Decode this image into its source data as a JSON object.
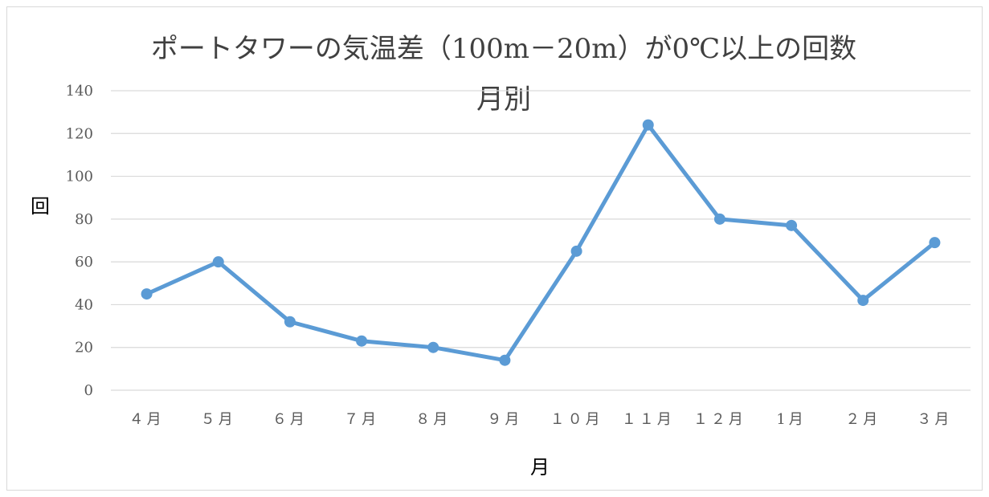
{
  "chart_data": {
    "type": "line",
    "title": "ポートタワーの気温差（100m－20m）が0℃以上の回数",
    "subtitle": "月別",
    "xlabel": "月",
    "ylabel": "回",
    "categories": [
      "４月",
      "５月",
      "６月",
      "７月",
      "８月",
      "９月",
      "１０月",
      "１１月",
      "１２月",
      "1月",
      "２月",
      "３月"
    ],
    "series": [
      {
        "values": [
          45,
          60,
          32,
          23,
          20,
          14,
          65,
          124,
          80,
          77,
          42,
          69
        ],
        "color": "#5b9bd5"
      }
    ],
    "ylim": [
      0,
      140
    ],
    "yticks": [
      0,
      20,
      40,
      60,
      80,
      100,
      120,
      140
    ],
    "grid": true,
    "legend": "none",
    "colors": {
      "line": "#5b9bd5",
      "grid": "#d9d9d9",
      "text": "#595959"
    }
  }
}
